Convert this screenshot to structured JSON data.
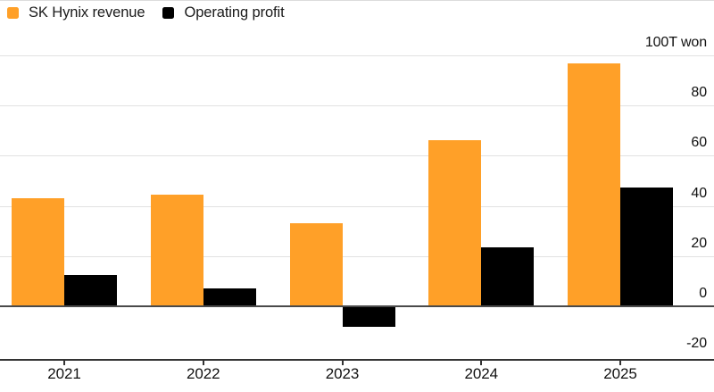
{
  "legend": {
    "items": [
      {
        "label": "SK Hynix revenue",
        "color": "#FFA028",
        "swatch": "orange-square"
      },
      {
        "label": "Operating profit",
        "color": "#000000",
        "swatch": "black-square"
      }
    ]
  },
  "chart_data": {
    "type": "bar",
    "title": "",
    "categories": [
      "2021",
      "2022",
      "2023",
      "2024",
      "2025"
    ],
    "series": [
      {
        "name": "SK Hynix revenue",
        "color": "#FFA028",
        "values": [
          43,
          44.6,
          33,
          66.2,
          96.8
        ]
      },
      {
        "name": "Operating profit",
        "color": "#000000",
        "values": [
          12.4,
          7,
          -7.7,
          23.3,
          47.4
        ]
      }
    ],
    "y_axis": {
      "position": "right",
      "unit_label": "100T won",
      "ticks": [
        100,
        80,
        60,
        40,
        20,
        0,
        -20
      ],
      "ylim": [
        -20,
        100
      ]
    },
    "grid": true,
    "legend_position": "top-left",
    "colors": {
      "revenue_bar": "#FFA028",
      "profit_bar": "#000000",
      "gridline": "#e2e2e2",
      "zero_line": "#4a4a4a",
      "axis_line": "#333333",
      "text": "#111111"
    }
  }
}
